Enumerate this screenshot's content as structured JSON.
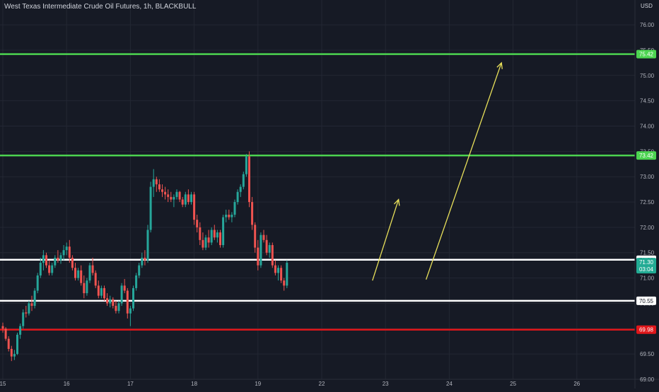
{
  "header": {
    "title": "West Texas Intermediate Crude Oil Futures, 1h, BLACKBULL",
    "currency": "USD"
  },
  "chart_data": {
    "type": "candlestick",
    "ylim": [
      69.0,
      76.35
    ],
    "y_ticks": [
      "76.00",
      "75.50",
      "75.00",
      "74.50",
      "74.00",
      "73.50",
      "73.00",
      "72.50",
      "72.00",
      "71.50",
      "71.00",
      "70.50",
      "70.00",
      "69.50",
      "69.00"
    ],
    "x_ticks": [
      {
        "label": "15",
        "idx": 0
      },
      {
        "label": "16",
        "idx": 22
      },
      {
        "label": "17",
        "idx": 44
      },
      {
        "label": "18",
        "idx": 66
      },
      {
        "label": "19",
        "idx": 88
      },
      {
        "label": "22",
        "idx": 110
      },
      {
        "label": "23",
        "idx": 132
      },
      {
        "label": "24",
        "idx": 154
      },
      {
        "label": "25",
        "idx": 176
      },
      {
        "label": "26",
        "idx": 198
      }
    ],
    "levels": [
      {
        "value": 75.42,
        "label": "75.42",
        "color": "#4cd450"
      },
      {
        "value": 73.42,
        "label": "73.42",
        "color": "#4cd450"
      },
      {
        "value": 71.36,
        "label": "71.36",
        "color": "#ffffff"
      },
      {
        "value": 70.55,
        "label": "70.55",
        "color": "#ffffff"
      },
      {
        "value": 69.98,
        "label": "69.98",
        "color": "#e0161a"
      }
    ],
    "price_marker": {
      "value": 71.3,
      "price": "71.30",
      "countdown": "03:04",
      "color": "#22ab94"
    },
    "colors": {
      "up": "#26a69a",
      "down": "#ef5350",
      "arrow": "#e8e05a",
      "grid": "#232733"
    },
    "arrows": [
      {
        "from": [
          127.5,
          70.95
        ],
        "to": [
          136.5,
          72.55
        ]
      },
      {
        "from": [
          146.0,
          70.97
        ],
        "to": [
          172.0,
          75.25
        ]
      }
    ],
    "candles": [
      [
        70.05,
        70.12,
        69.92,
        70.0
      ],
      [
        70.0,
        70.03,
        69.76,
        69.8
      ],
      [
        69.8,
        69.85,
        69.55,
        69.6
      ],
      [
        69.6,
        69.66,
        69.36,
        69.45
      ],
      [
        69.45,
        69.58,
        69.38,
        69.5
      ],
      [
        69.5,
        69.92,
        69.48,
        69.88
      ],
      [
        69.88,
        70.1,
        69.8,
        70.05
      ],
      [
        70.05,
        70.38,
        70.0,
        70.32
      ],
      [
        70.32,
        70.45,
        70.22,
        70.3
      ],
      [
        70.3,
        70.55,
        70.26,
        70.5
      ],
      [
        70.5,
        70.65,
        70.35,
        70.45
      ],
      [
        70.45,
        70.8,
        70.4,
        70.75
      ],
      [
        70.75,
        71.1,
        70.7,
        71.05
      ],
      [
        71.05,
        71.4,
        71.0,
        71.3
      ],
      [
        71.3,
        71.55,
        71.15,
        71.45
      ],
      [
        71.45,
        71.5,
        71.2,
        71.25
      ],
      [
        71.25,
        71.35,
        71.05,
        71.1
      ],
      [
        71.1,
        71.3,
        71.05,
        71.25
      ],
      [
        71.25,
        71.45,
        71.2,
        71.4
      ],
      [
        71.4,
        71.55,
        71.3,
        71.35
      ],
      [
        71.35,
        71.5,
        71.28,
        71.45
      ],
      [
        71.45,
        71.65,
        71.35,
        71.55
      ],
      [
        71.55,
        71.7,
        71.45,
        71.62
      ],
      [
        71.62,
        71.75,
        71.3,
        71.4
      ],
      [
        71.4,
        71.45,
        71.15,
        71.2
      ],
      [
        71.2,
        71.3,
        70.95,
        71.0
      ],
      [
        71.0,
        71.2,
        70.95,
        71.15
      ],
      [
        71.15,
        71.25,
        70.85,
        70.9
      ],
      [
        70.9,
        71.05,
        70.6,
        70.7
      ],
      [
        70.7,
        71.0,
        70.65,
        70.95
      ],
      [
        70.95,
        71.3,
        70.9,
        71.25
      ],
      [
        71.25,
        71.4,
        71.05,
        71.1
      ],
      [
        71.1,
        71.15,
        70.8,
        70.85
      ],
      [
        70.85,
        70.95,
        70.6,
        70.65
      ],
      [
        70.65,
        70.85,
        70.6,
        70.8
      ],
      [
        70.8,
        70.85,
        70.55,
        70.6
      ],
      [
        70.6,
        70.7,
        70.45,
        70.5
      ],
      [
        70.5,
        70.65,
        70.42,
        70.58
      ],
      [
        70.58,
        70.62,
        70.4,
        70.45
      ],
      [
        70.45,
        70.55,
        70.3,
        70.35
      ],
      [
        70.35,
        70.55,
        70.3,
        70.5
      ],
      [
        70.5,
        70.9,
        70.45,
        70.85
      ],
      [
        70.85,
        70.98,
        70.7,
        70.75
      ],
      [
        70.75,
        70.8,
        70.2,
        70.3
      ],
      [
        70.3,
        70.45,
        70.05,
        70.4
      ],
      [
        70.4,
        70.85,
        70.35,
        70.8
      ],
      [
        70.8,
        71.1,
        70.75,
        71.05
      ],
      [
        71.05,
        71.3,
        71.0,
        71.25
      ],
      [
        71.25,
        71.5,
        71.2,
        71.4
      ],
      [
        71.4,
        71.55,
        71.25,
        71.35
      ],
      [
        71.35,
        72.05,
        71.3,
        71.95
      ],
      [
        71.95,
        72.9,
        71.9,
        72.8
      ],
      [
        72.8,
        73.15,
        72.6,
        72.95
      ],
      [
        72.95,
        73.0,
        72.7,
        72.85
      ],
      [
        72.85,
        72.95,
        72.7,
        72.75
      ],
      [
        72.75,
        72.85,
        72.6,
        72.7
      ],
      [
        72.7,
        72.8,
        72.55,
        72.65
      ],
      [
        72.65,
        72.75,
        72.5,
        72.6
      ],
      [
        72.6,
        72.7,
        72.5,
        72.55
      ],
      [
        72.55,
        72.65,
        72.4,
        72.6
      ],
      [
        72.6,
        72.75,
        72.55,
        72.7
      ],
      [
        72.7,
        72.72,
        72.5,
        72.55
      ],
      [
        72.55,
        72.6,
        72.4,
        72.45
      ],
      [
        72.45,
        72.7,
        72.4,
        72.65
      ],
      [
        72.65,
        72.75,
        72.45,
        72.5
      ],
      [
        72.5,
        72.7,
        72.45,
        72.65
      ],
      [
        72.65,
        72.7,
        72.05,
        72.15
      ],
      [
        72.15,
        72.25,
        71.9,
        72.0
      ],
      [
        72.0,
        72.1,
        71.65,
        71.75
      ],
      [
        71.75,
        71.9,
        71.55,
        71.6
      ],
      [
        71.6,
        71.85,
        71.55,
        71.8
      ],
      [
        71.8,
        71.95,
        71.6,
        71.7
      ],
      [
        71.7,
        72.0,
        71.65,
        71.95
      ],
      [
        71.95,
        72.05,
        71.75,
        71.8
      ],
      [
        71.8,
        71.95,
        71.7,
        71.9
      ],
      [
        71.9,
        71.95,
        71.6,
        71.65
      ],
      [
        71.65,
        72.25,
        71.6,
        72.2
      ],
      [
        72.2,
        72.35,
        72.1,
        72.25
      ],
      [
        72.25,
        72.35,
        72.15,
        72.2
      ],
      [
        72.2,
        72.3,
        72.1,
        72.25
      ],
      [
        72.25,
        72.55,
        72.2,
        72.5
      ],
      [
        72.5,
        72.75,
        72.45,
        72.7
      ],
      [
        72.7,
        72.85,
        72.6,
        72.8
      ],
      [
        72.8,
        73.1,
        72.75,
        73.05
      ],
      [
        73.05,
        73.45,
        73.0,
        73.4
      ],
      [
        73.4,
        73.5,
        72.4,
        72.5
      ],
      [
        72.5,
        72.6,
        71.95,
        72.05
      ],
      [
        72.05,
        72.1,
        71.5,
        71.6
      ],
      [
        71.6,
        71.75,
        71.15,
        71.25
      ],
      [
        71.25,
        71.9,
        71.2,
        71.85
      ],
      [
        71.85,
        71.95,
        71.7,
        71.75
      ],
      [
        71.75,
        71.85,
        71.45,
        71.5
      ],
      [
        71.5,
        71.7,
        71.4,
        71.65
      ],
      [
        71.65,
        71.7,
        71.2,
        71.25
      ],
      [
        71.25,
        71.35,
        71.05,
        71.1
      ],
      [
        71.1,
        71.25,
        70.95,
        71.2
      ],
      [
        71.2,
        71.25,
        70.9,
        70.95
      ],
      [
        70.95,
        71.0,
        70.75,
        70.85
      ],
      [
        70.85,
        71.35,
        70.8,
        71.3
      ]
    ]
  }
}
